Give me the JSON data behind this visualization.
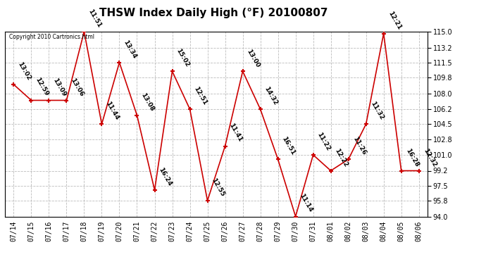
{
  "title": "THSW Index Daily High (°F) 20100807",
  "copyright": "Copyright 2010 Cartronics.html",
  "x_labels": [
    "07/14",
    "07/15",
    "07/16",
    "07/17",
    "07/18",
    "07/19",
    "07/20",
    "07/21",
    "07/22",
    "07/23",
    "07/24",
    "07/25",
    "07/26",
    "07/27",
    "07/28",
    "07/29",
    "07/30",
    "07/31",
    "08/01",
    "08/02",
    "08/03",
    "08/04",
    "08/05",
    "08/06"
  ],
  "y_values": [
    109.0,
    107.2,
    107.2,
    107.2,
    115.0,
    104.5,
    111.5,
    105.5,
    97.0,
    110.5,
    106.2,
    95.8,
    102.0,
    110.5,
    106.2,
    100.5,
    94.0,
    101.0,
    99.2,
    100.5,
    104.5,
    114.8,
    99.2,
    99.2
  ],
  "point_labels": [
    "13:02",
    "12:59",
    "13:09",
    "13:06",
    "11:51",
    "11:44",
    "13:34",
    "13:08",
    "16:24",
    "15:02",
    "12:51",
    "12:55",
    "11:41",
    "13:00",
    "14:32",
    "16:51",
    "11:14",
    "11:22",
    "12:22",
    "11:26",
    "11:32",
    "12:21",
    "16:28",
    "12:32"
  ],
  "ylim": [
    94.0,
    115.0
  ],
  "yticks": [
    94.0,
    95.8,
    97.5,
    99.2,
    101.0,
    102.8,
    104.5,
    106.2,
    108.0,
    109.8,
    111.5,
    113.2,
    115.0
  ],
  "line_color": "#cc0000",
  "marker_color": "#cc0000",
  "bg_color": "#ffffff",
  "grid_color": "#bbbbbb",
  "title_fontsize": 11,
  "tick_fontsize": 7,
  "point_label_fontsize": 6.5
}
